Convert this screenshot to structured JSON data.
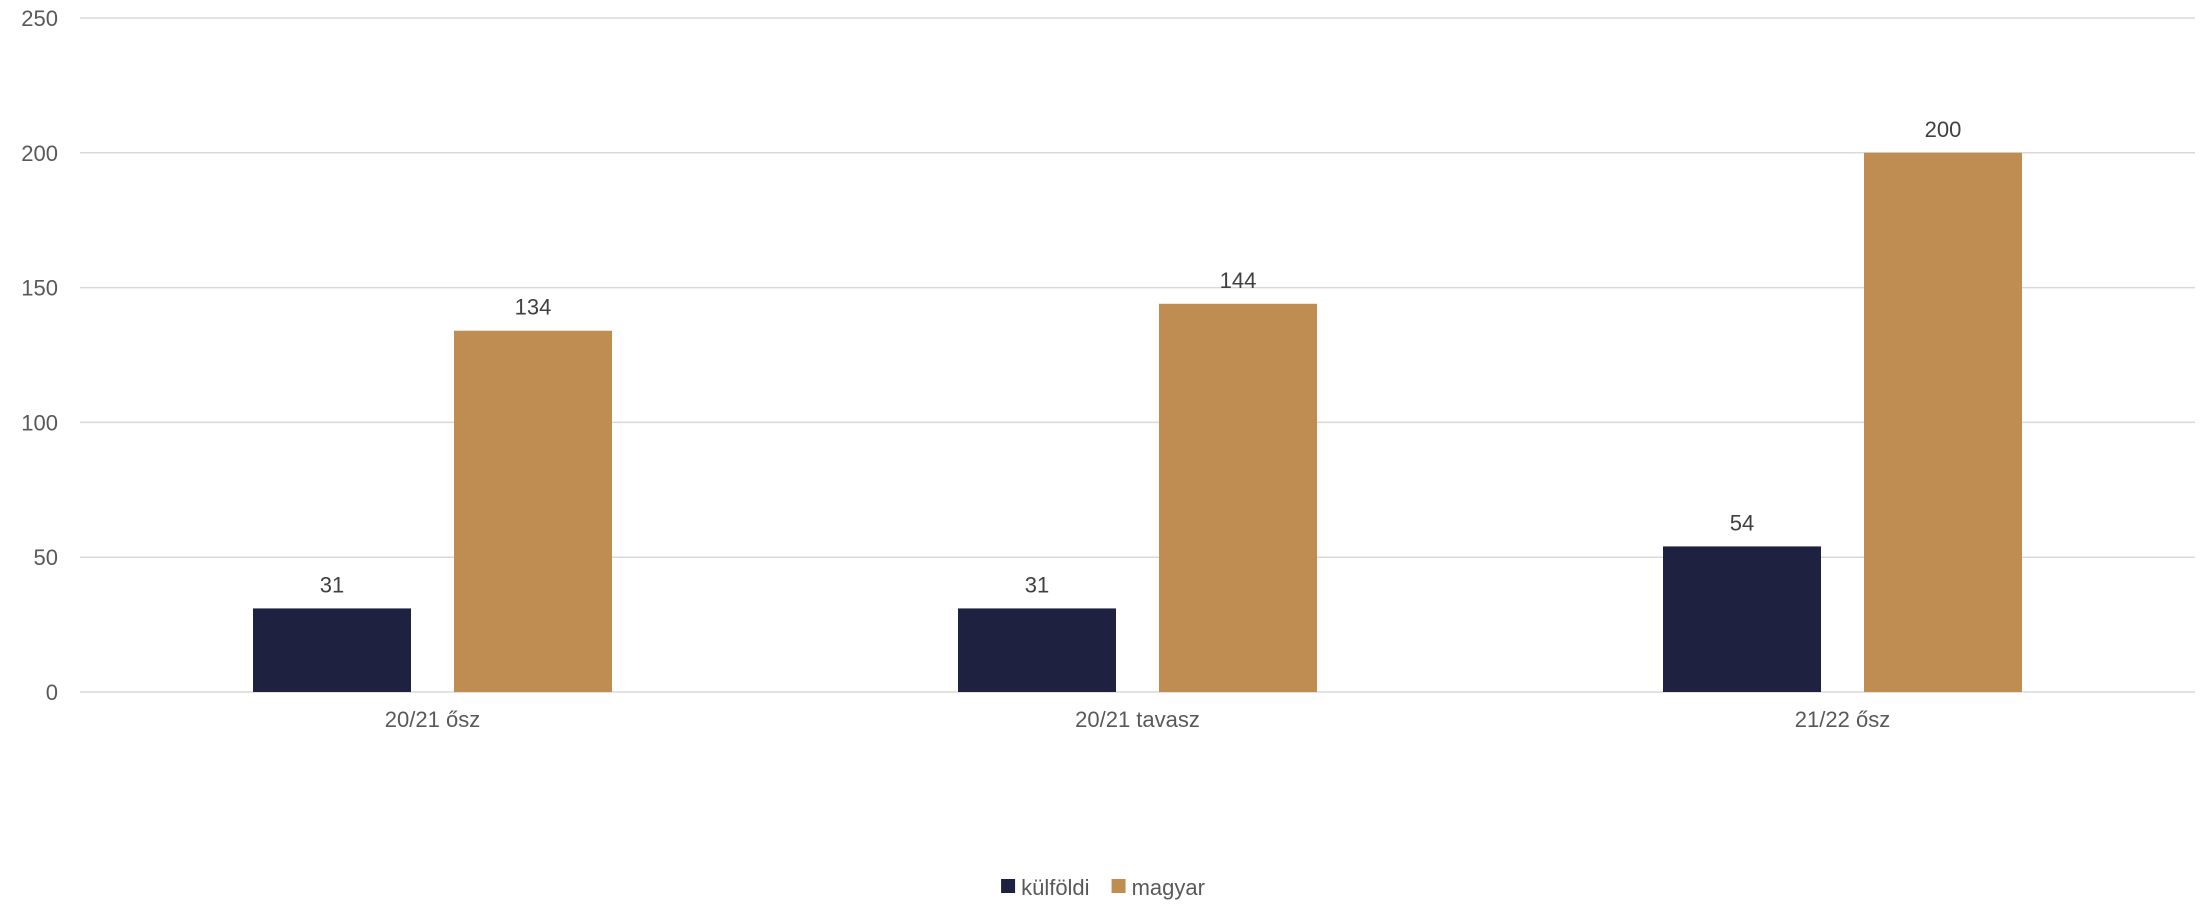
{
  "chart_data": {
    "type": "bar",
    "categories": [
      "20/21 ősz",
      "20/21 tavasz",
      "21/22 ősz"
    ],
    "series": [
      {
        "name": "külföldi",
        "values": [
          31,
          31,
          54
        ],
        "color": "#1e2140"
      },
      {
        "name": "magyar",
        "values": [
          134,
          144,
          200
        ],
        "color": "#bf8d52"
      }
    ],
    "ylim": [
      0,
      250
    ],
    "yticks": [
      0,
      50,
      100,
      150,
      200,
      250
    ],
    "grid": true,
    "gridColor": "#d9d9d9",
    "data_labels": true,
    "legend": "bottom"
  }
}
